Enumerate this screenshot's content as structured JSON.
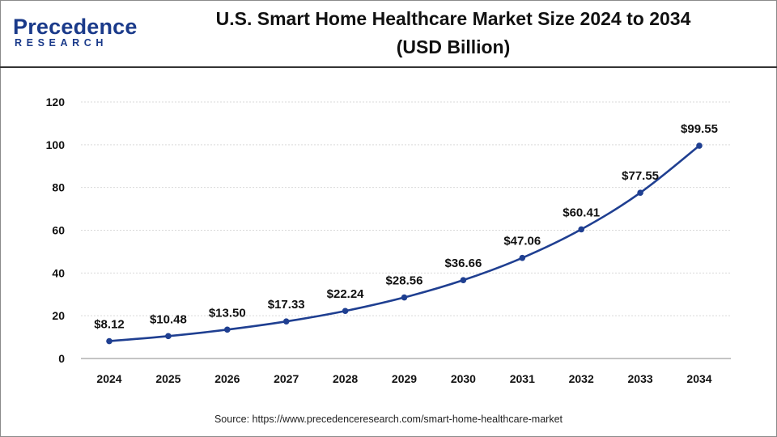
{
  "brand": {
    "name": "Precedence",
    "sub": "RESEARCH"
  },
  "chart_data": {
    "type": "line",
    "title": "U.S. Smart Home Healthcare Market Size 2024 to 2034 (USD Billion)",
    "title_lines": [
      "U.S. Smart Home Healthcare Market Size 2024 to 2034",
      "(USD Billion)"
    ],
    "categories": [
      "2024",
      "2025",
      "2026",
      "2027",
      "2028",
      "2029",
      "2030",
      "2031",
      "2032",
      "2033",
      "2034"
    ],
    "values": [
      8.12,
      10.48,
      13.5,
      17.33,
      22.24,
      28.56,
      36.66,
      47.06,
      60.41,
      77.55,
      99.55
    ],
    "data_labels": [
      "$8.12",
      "$10.48",
      "$13.50",
      "$17.33",
      "$22.24",
      "$28.56",
      "$36.66",
      "$47.06",
      "$60.41",
      "$77.55",
      "$99.55"
    ],
    "ylim": [
      0,
      120
    ],
    "yticks": [
      0,
      20,
      40,
      60,
      80,
      100,
      120
    ],
    "xlabel": "",
    "ylabel": "",
    "grid": true,
    "line_color": "#1f3f91"
  },
  "source": "Source: https://www.precedenceresearch.com/smart-home-healthcare-market"
}
